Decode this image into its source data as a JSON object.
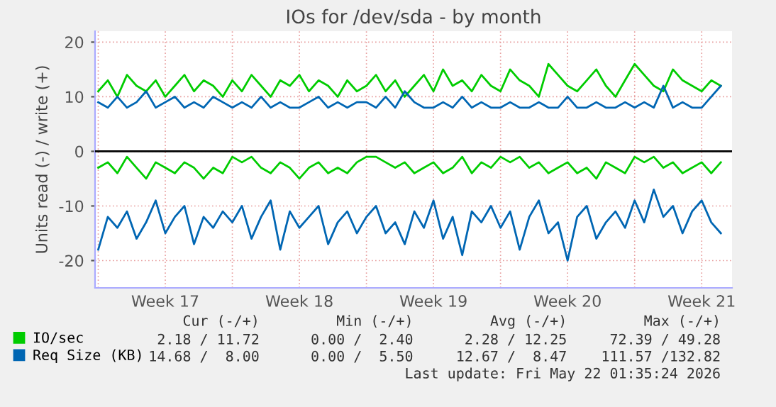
{
  "chart_data": {
    "type": "line",
    "title": "IOs for /dev/sda - by month",
    "ylabel": "Units read (-) / write (+)",
    "x": [
      "2026-04-20T00:00",
      "2026-04-20T12:00",
      "2026-04-21T00:00",
      "2026-04-21T12:00",
      "2026-04-22T00:00",
      "2026-04-22T12:00",
      "2026-04-23T00:00",
      "2026-04-23T12:00",
      "2026-04-24T00:00",
      "2026-04-24T12:00",
      "2026-04-25T00:00",
      "2026-04-25T12:00",
      "2026-04-26T00:00",
      "2026-04-26T12:00",
      "2026-04-27T00:00",
      "2026-04-27T12:00",
      "2026-04-28T00:00",
      "2026-04-28T12:00",
      "2026-04-29T00:00",
      "2026-04-29T12:00",
      "2026-04-30T00:00",
      "2026-04-30T12:00",
      "2026-05-01T00:00",
      "2026-05-01T12:00",
      "2026-05-02T00:00",
      "2026-05-02T12:00",
      "2026-05-03T00:00",
      "2026-05-03T12:00",
      "2026-05-04T00:00",
      "2026-05-04T12:00",
      "2026-05-05T00:00",
      "2026-05-05T12:00",
      "2026-05-06T00:00",
      "2026-05-06T12:00",
      "2026-05-07T00:00",
      "2026-05-07T12:00",
      "2026-05-08T00:00",
      "2026-05-08T12:00",
      "2026-05-09T00:00",
      "2026-05-09T12:00",
      "2026-05-10T00:00",
      "2026-05-10T12:00",
      "2026-05-11T00:00",
      "2026-05-11T12:00",
      "2026-05-12T00:00",
      "2026-05-12T12:00",
      "2026-05-13T00:00",
      "2026-05-13T12:00",
      "2026-05-14T00:00",
      "2026-05-14T12:00",
      "2026-05-15T00:00",
      "2026-05-15T12:00",
      "2026-05-16T00:00",
      "2026-05-16T12:00",
      "2026-05-17T00:00",
      "2026-05-17T12:00",
      "2026-05-18T00:00",
      "2026-05-18T12:00",
      "2026-05-19T00:00",
      "2026-05-19T12:00",
      "2026-05-20T00:00",
      "2026-05-20T12:00",
      "2026-05-21T00:00",
      "2026-05-21T12:00",
      "2026-05-22T00:00",
      "2026-05-22T12:00"
    ],
    "series": [
      {
        "color": "#00cc00",
        "values": [
          -3,
          -2,
          -4,
          -1,
          -3,
          -5,
          -2,
          -3,
          -4,
          -2,
          -3,
          -5,
          -3,
          -4,
          -1,
          -2,
          -1,
          -3,
          -4,
          -2,
          -3,
          -5,
          -3,
          -2,
          -4,
          -3,
          -4,
          -2,
          -1,
          -1,
          -2,
          -3,
          -2,
          -4,
          -3,
          -2,
          -4,
          -3,
          -1,
          -4,
          -2,
          -3,
          -1,
          -2,
          -1,
          -3,
          -2,
          -4,
          -3,
          -2,
          -4,
          -3,
          -5,
          -2,
          -3,
          -4,
          -1,
          -2,
          -1,
          -3,
          -2,
          -4,
          -3,
          -2,
          -4,
          -2
        ]
      },
      {
        "name": "IO/sec",
        "color": "#00cc00",
        "values": [
          11,
          13,
          10,
          14,
          12,
          11,
          13,
          10,
          12,
          14,
          11,
          13,
          12,
          10,
          13,
          11,
          14,
          12,
          10,
          13,
          12,
          14,
          11,
          13,
          12,
          10,
          13,
          11,
          12,
          14,
          11,
          13,
          10,
          12,
          14,
          11,
          15,
          12,
          13,
          11,
          14,
          12,
          11,
          15,
          13,
          12,
          10,
          16,
          14,
          12,
          11,
          13,
          15,
          12,
          10,
          13,
          16,
          14,
          12,
          11,
          15,
          13,
          12,
          11,
          13,
          12
        ]
      },
      {
        "color": "#0066b3",
        "values": [
          -18,
          -12,
          -14,
          -11,
          -16,
          -13,
          -9,
          -15,
          -12,
          -10,
          -17,
          -12,
          -14,
          -11,
          -13,
          -10,
          -16,
          -12,
          -9,
          -18,
          -11,
          -14,
          -12,
          -10,
          -17,
          -13,
          -11,
          -15,
          -12,
          -10,
          -15,
          -13,
          -17,
          -11,
          -14,
          -9,
          -16,
          -12,
          -19,
          -11,
          -13,
          -10,
          -14,
          -11,
          -18,
          -12,
          -9,
          -15,
          -13,
          -20,
          -12,
          -10,
          -16,
          -13,
          -11,
          -14,
          -9,
          -13,
          -7,
          -12,
          -10,
          -15,
          -11,
          -9,
          -13,
          -15
        ]
      },
      {
        "name": "Req Size (KB)",
        "color": "#0066b3",
        "values": [
          9,
          8,
          10,
          8,
          9,
          11,
          8,
          9,
          10,
          8,
          9,
          8,
          10,
          9,
          8,
          9,
          8,
          10,
          8,
          9,
          8,
          8,
          9,
          10,
          8,
          9,
          8,
          9,
          9,
          8,
          10,
          8,
          11,
          9,
          8,
          8,
          9,
          8,
          10,
          8,
          9,
          8,
          8,
          9,
          8,
          8,
          9,
          8,
          8,
          10,
          8,
          8,
          9,
          8,
          8,
          9,
          8,
          9,
          8,
          12,
          8,
          9,
          8,
          8,
          10,
          12
        ]
      }
    ],
    "xlim": [
      "2026-04-19T20:00",
      "2026-05-23T02:00"
    ],
    "xticks": [
      {
        "value": "2026-04-20T00:00",
        "label": null
      },
      {
        "value": "2026-04-23T12:00",
        "label": "Week 17"
      },
      {
        "value": "2026-04-27T00:00",
        "label": null
      },
      {
        "value": "2026-04-30T12:00",
        "label": "Week 18"
      },
      {
        "value": "2026-05-04T00:00",
        "label": null
      },
      {
        "value": "2026-05-07T12:00",
        "label": "Week 19"
      },
      {
        "value": "2026-05-11T00:00",
        "label": null
      },
      {
        "value": "2026-05-14T12:00",
        "label": "Week 20"
      },
      {
        "value": "2026-05-18T00:00",
        "label": null
      },
      {
        "value": "2026-05-21T12:00",
        "label": "Week 21"
      }
    ],
    "ylim": [
      -25,
      22
    ],
    "yticks": [
      -20,
      -10,
      0,
      10,
      20
    ],
    "ref_lines": [
      {
        "axis": "y",
        "value": 0,
        "label": null,
        "color": "#000000"
      }
    ],
    "grid": true,
    "legend": "bottom left",
    "marker": "none",
    "line_style": "solid",
    "annotations": [
      "Cur (-/+)         Min (-/+)         Avg (-/+)         Max (-/+)",
      "2.18 / 11.72      0.00 /  2.40      2.28 / 12.25     72.39 / 49.28",
      "14.68 /  8.00      0.00 /  5.50     12.67 /  8.47    111.57 /132.82",
      "Last update: Fri May 22 01:35:24 2026"
    ]
  }
}
